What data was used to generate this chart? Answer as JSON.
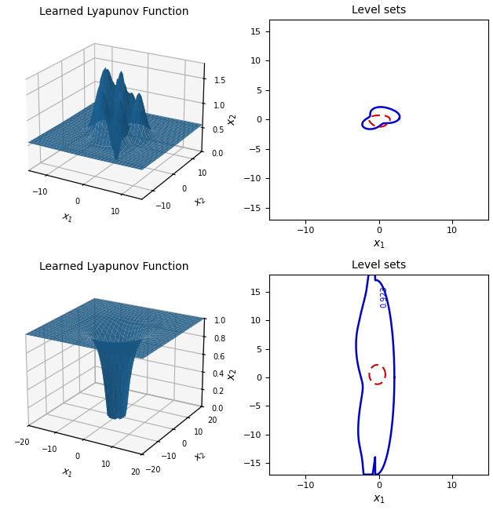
{
  "title_3d": "Learned Lyapunov Function",
  "title_2d": "Level sets",
  "xlabel_2d": "$x_1$",
  "ylabel_2d": "$x_2$",
  "xlabel_3d": "$x_1$",
  "ylabel_3d": "$x_2$",
  "surface_color": "#1f6fa8",
  "contour_color_blue": "#0000cc",
  "contour_color_red": "#cc0000",
  "row1_zticks": [
    0.0,
    0.5,
    1.0,
    1.5
  ],
  "row2_zticks": [
    0.0,
    0.2,
    0.4,
    0.6,
    0.8,
    1.0
  ],
  "contour_label_2": "0.923",
  "pane_color": [
    0.93,
    0.93,
    0.93,
    1.0
  ]
}
